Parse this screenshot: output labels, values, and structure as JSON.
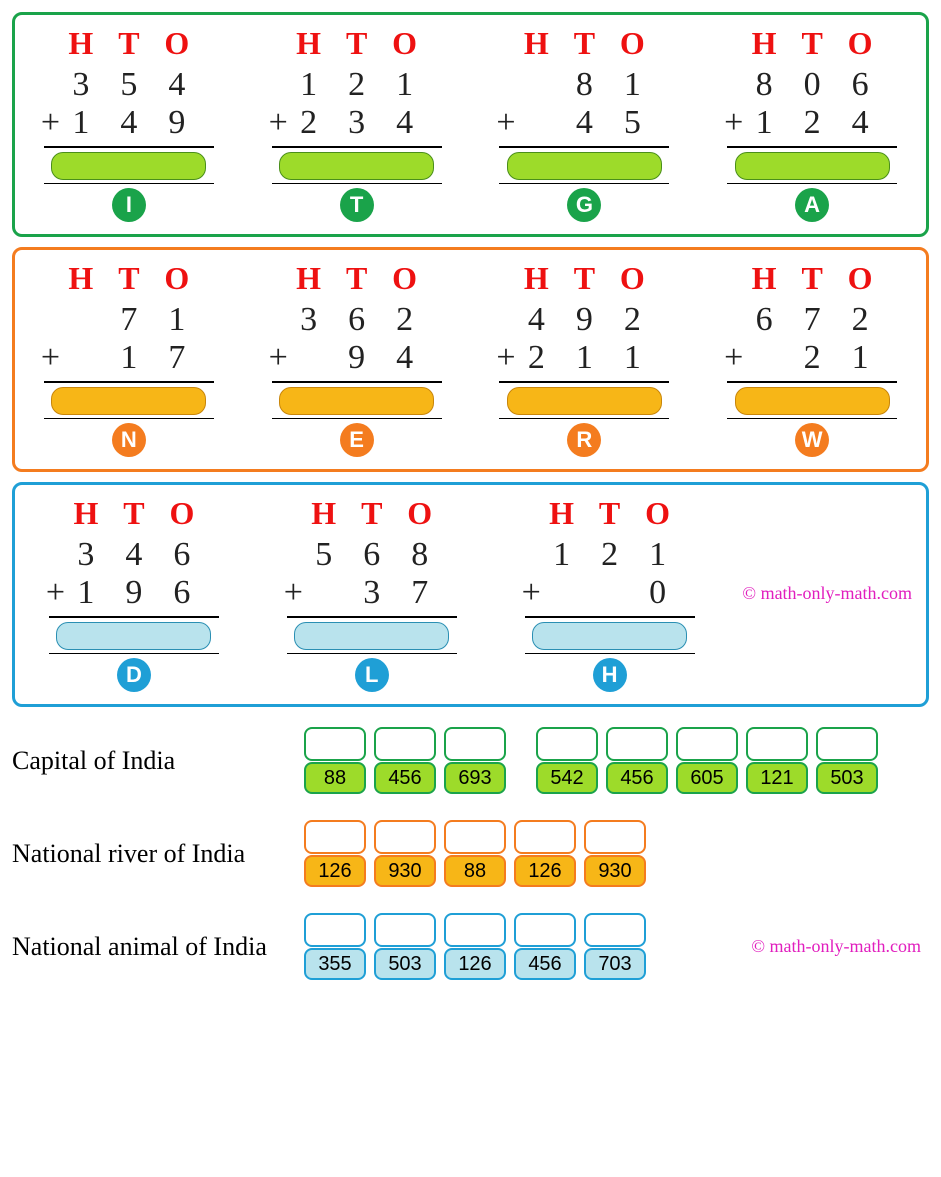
{
  "hto_labels": [
    "H",
    "T",
    "O"
  ],
  "groups": [
    {
      "color": "green",
      "problems": [
        {
          "letter": "I",
          "row1": [
            "3",
            "5",
            "4"
          ],
          "row2": [
            "1",
            "4",
            "9"
          ]
        },
        {
          "letter": "T",
          "row1": [
            "1",
            "2",
            "1"
          ],
          "row2": [
            "2",
            "3",
            "4"
          ]
        },
        {
          "letter": "G",
          "row1": [
            "",
            "8",
            "1"
          ],
          "row2": [
            "",
            "4",
            "5"
          ]
        },
        {
          "letter": "A",
          "row1": [
            "8",
            "0",
            "6"
          ],
          "row2": [
            "1",
            "2",
            "4"
          ]
        }
      ]
    },
    {
      "color": "orange",
      "problems": [
        {
          "letter": "N",
          "row1": [
            "",
            "7",
            "1"
          ],
          "row2": [
            "",
            "1",
            "7"
          ]
        },
        {
          "letter": "E",
          "row1": [
            "3",
            "6",
            "2"
          ],
          "row2": [
            "",
            "9",
            "4"
          ]
        },
        {
          "letter": "R",
          "row1": [
            "4",
            "9",
            "2"
          ],
          "row2": [
            "2",
            "1",
            "1"
          ]
        },
        {
          "letter": "W",
          "row1": [
            "6",
            "7",
            "2"
          ],
          "row2": [
            "",
            "2",
            "1"
          ]
        }
      ]
    },
    {
      "color": "blue",
      "credit": "© math-only-math.com",
      "problems": [
        {
          "letter": "D",
          "row1": [
            "3",
            "4",
            "6"
          ],
          "row2": [
            "1",
            "9",
            "6"
          ]
        },
        {
          "letter": "L",
          "row1": [
            "5",
            "6",
            "8"
          ],
          "row2": [
            "",
            "3",
            "7"
          ]
        },
        {
          "letter": "H",
          "row1": [
            "1",
            "2",
            "1"
          ],
          "row2": [
            "",
            "",
            "0"
          ]
        }
      ]
    }
  ],
  "decode": [
    {
      "label": "Capital of India",
      "box_color": "gr",
      "sets": [
        [
          "88",
          "456",
          "693"
        ],
        [
          "542",
          "456",
          "605",
          "121",
          "503"
        ]
      ]
    },
    {
      "label": "National river of India",
      "box_color": "or",
      "sets": [
        [
          "126",
          "930",
          "88",
          "126",
          "930"
        ]
      ]
    },
    {
      "label": "National animal of India",
      "box_color": "bl",
      "sets": [
        [
          "355",
          "503",
          "126",
          "456",
          "703"
        ]
      ],
      "credit": "© math-only-math.com"
    }
  ],
  "plus_sign": "+"
}
